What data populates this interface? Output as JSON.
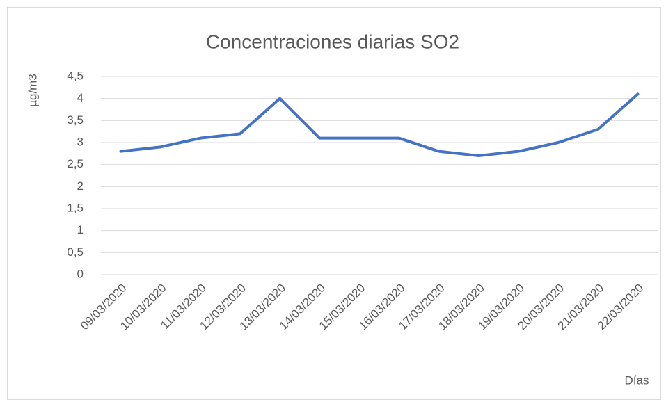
{
  "chart_data": {
    "type": "line",
    "title": "Concentraciones diarias SO2",
    "y_label": "µg/m3",
    "x_label": "Días",
    "categories": [
      "09/03/2020",
      "10/03/2020",
      "11/03/2020",
      "12/03/2020",
      "13/03/2020",
      "14/03/2020",
      "15/03/2020",
      "16/03/2020",
      "17/03/2020",
      "18/03/2020",
      "19/03/2020",
      "20/03/2020",
      "21/03/2020",
      "22/03/2020"
    ],
    "values": [
      2.8,
      2.9,
      3.1,
      3.2,
      4.0,
      3.1,
      3.1,
      3.1,
      2.8,
      2.7,
      2.8,
      3.0,
      3.3,
      4.1
    ],
    "color": "#4472c4",
    "ylim": [
      0,
      4.5
    ],
    "yticks": [
      0,
      {
        "value": 0.5,
        "label": "0,5"
      },
      1,
      {
        "value": 1.5,
        "label": "1,5"
      },
      2,
      {
        "value": 2.5,
        "label": "2,5"
      },
      3,
      {
        "value": 3.5,
        "label": "3,5"
      },
      4,
      {
        "value": 4.5,
        "label": "4,5"
      }
    ],
    "grid": true
  }
}
